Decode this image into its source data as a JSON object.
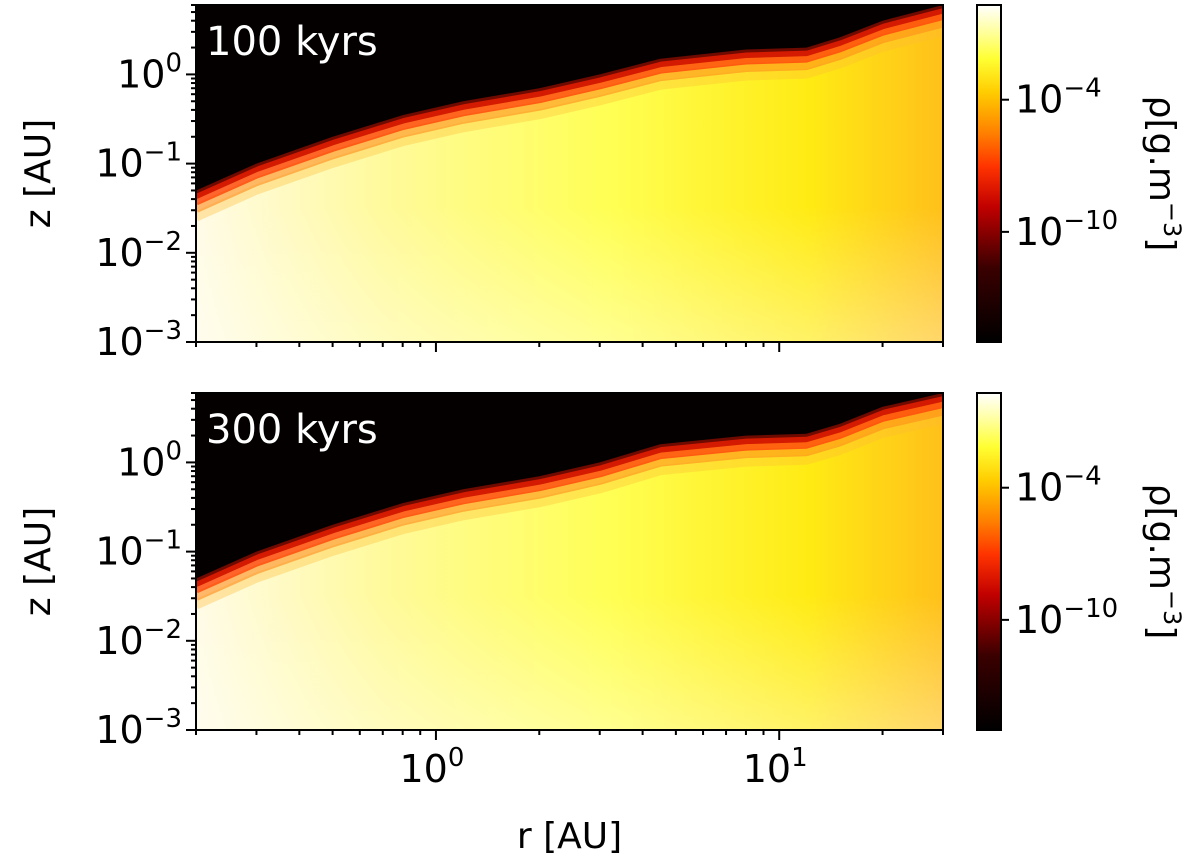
{
  "chart_data": [
    {
      "type": "heatmap",
      "panel_label": "100 kyrs",
      "xlabel": "r [AU]",
      "ylabel": "z [AU]",
      "xscale": "log",
      "yscale": "log",
      "xlim": [
        0.2,
        30
      ],
      "ylim": [
        0.001,
        6
      ],
      "x_ticks": [
        {
          "base": "10",
          "exp": "0",
          "value": 1
        },
        {
          "base": "10",
          "exp": "1",
          "value": 10
        }
      ],
      "y_ticks": [
        {
          "base": "10",
          "exp": "−3",
          "value": 0.001
        },
        {
          "base": "10",
          "exp": "−2",
          "value": 0.01
        },
        {
          "base": "10",
          "exp": "−1",
          "value": 0.1
        },
        {
          "base": "10",
          "exp": "0",
          "value": 1
        }
      ],
      "surface_r": [
        0.2,
        0.3,
        0.5,
        0.8,
        1.2,
        2,
        3,
        4.5,
        8,
        12,
        15,
        20,
        30
      ],
      "surface_z": [
        0.05,
        0.1,
        0.2,
        0.35,
        0.5,
        0.7,
        1.0,
        1.5,
        1.9,
        2.0,
        2.6,
        4.0,
        6.0
      ],
      "colorbar": {
        "label_parts": [
          "ρ[g.m",
          "−3",
          "]"
        ],
        "scale": "log",
        "ticks": [
          {
            "base": "10",
            "exp": "−4",
            "value": -4
          },
          {
            "base": "10",
            "exp": "−10",
            "value": -10
          }
        ],
        "range_log10": [
          -15,
          0.3
        ],
        "colormap": "afmhot"
      }
    },
    {
      "type": "heatmap",
      "panel_label": "300 kyrs",
      "xlabel": "r [AU]",
      "ylabel": "z [AU]",
      "xscale": "log",
      "yscale": "log",
      "xlim": [
        0.2,
        30
      ],
      "ylim": [
        0.001,
        6
      ],
      "x_ticks": [
        {
          "base": "10",
          "exp": "0",
          "value": 1
        },
        {
          "base": "10",
          "exp": "1",
          "value": 10
        }
      ],
      "y_ticks": [
        {
          "base": "10",
          "exp": "−3",
          "value": 0.001
        },
        {
          "base": "10",
          "exp": "−2",
          "value": 0.01
        },
        {
          "base": "10",
          "exp": "−1",
          "value": 0.1
        },
        {
          "base": "10",
          "exp": "0",
          "value": 1
        }
      ],
      "surface_r": [
        0.2,
        0.3,
        0.5,
        0.8,
        1.2,
        2,
        3,
        4.5,
        8,
        12,
        15,
        20,
        30
      ],
      "surface_z": [
        0.05,
        0.1,
        0.2,
        0.35,
        0.5,
        0.7,
        1.0,
        1.6,
        2.0,
        2.1,
        2.7,
        4.2,
        6.0
      ],
      "colorbar": {
        "label_parts": [
          "ρ[g.m",
          "−3",
          "]"
        ],
        "scale": "log",
        "ticks": [
          {
            "base": "10",
            "exp": "−4",
            "value": -4
          },
          {
            "base": "10",
            "exp": "−10",
            "value": -10
          }
        ],
        "range_log10": [
          -15,
          0.3
        ],
        "colormap": "afmhot"
      }
    }
  ]
}
